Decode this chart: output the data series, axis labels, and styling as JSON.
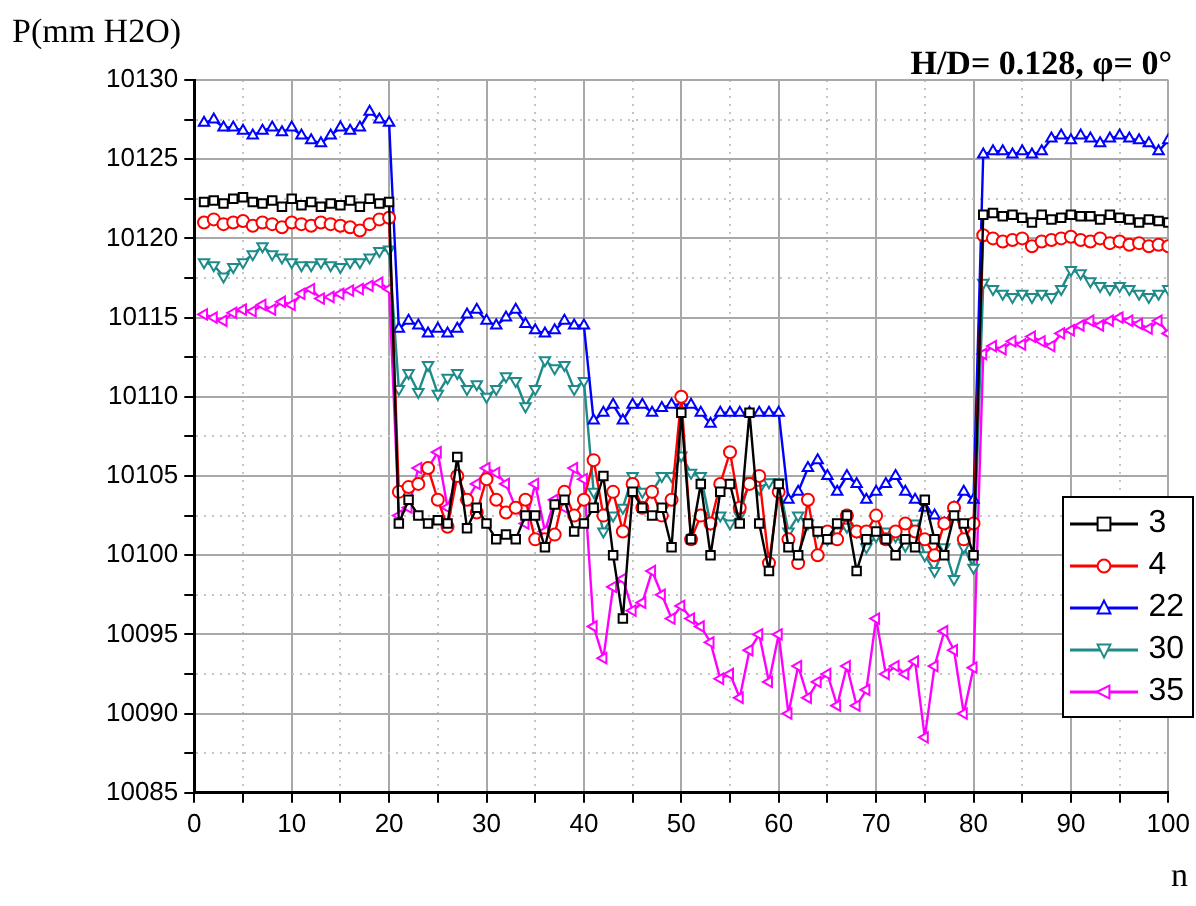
{
  "chart_data": {
    "type": "line",
    "title": "H/D= 0.128, φ= 0°",
    "xlabel": "n",
    "ylabel": "P(mm H2O)",
    "x": [
      1,
      2,
      3,
      4,
      5,
      6,
      7,
      8,
      9,
      10,
      11,
      12,
      13,
      14,
      15,
      16,
      17,
      18,
      19,
      20,
      21,
      22,
      23,
      24,
      25,
      26,
      27,
      28,
      29,
      30,
      31,
      32,
      33,
      34,
      35,
      36,
      37,
      38,
      39,
      40,
      41,
      42,
      43,
      44,
      45,
      46,
      47,
      48,
      49,
      50,
      51,
      52,
      53,
      54,
      55,
      56,
      57,
      58,
      59,
      60,
      61,
      62,
      63,
      64,
      65,
      66,
      67,
      68,
      69,
      70,
      71,
      72,
      73,
      74,
      75,
      76,
      77,
      78,
      79,
      80,
      81,
      82,
      83,
      84,
      85,
      86,
      87,
      88,
      89,
      90,
      91,
      92,
      93,
      94,
      95,
      96,
      97,
      98,
      99,
      100
    ],
    "xlim": [
      0,
      100
    ],
    "xticks": [
      0,
      {
        "value": 5,
        "label": null
      },
      10,
      {
        "value": 15,
        "label": null
      },
      20,
      {
        "value": 25,
        "label": null
      },
      30,
      {
        "value": 35,
        "label": null
      },
      40,
      {
        "value": 45,
        "label": null
      },
      50,
      {
        "value": 55,
        "label": null
      },
      60,
      {
        "value": 65,
        "label": null
      },
      70,
      {
        "value": 75,
        "label": null
      },
      80,
      {
        "value": 85,
        "label": null
      },
      90,
      {
        "value": 95,
        "label": null
      },
      100
    ],
    "ylim": [
      10085,
      10130
    ],
    "yticks": [
      10085,
      {
        "value": 10087.5,
        "label": null
      },
      10090,
      {
        "value": 10092.5,
        "label": null
      },
      10095,
      {
        "value": 10097.5,
        "label": null
      },
      10100,
      {
        "value": 10102.5,
        "label": null
      },
      10105,
      {
        "value": 10107.5,
        "label": null
      },
      10110,
      {
        "value": 10112.5,
        "label": null
      },
      10115,
      {
        "value": 10117.5,
        "label": null
      },
      10120,
      {
        "value": 10122.5,
        "label": null
      },
      10125,
      {
        "value": 10127.5,
        "label": null
      },
      10130
    ],
    "grid": true,
    "legend": "right",
    "line_style": "solid",
    "series": [
      {
        "name": "3",
        "color": "#000000",
        "marker": "square",
        "values": [
          10122.3,
          10122.4,
          10122.2,
          10122.5,
          10122.6,
          10122.3,
          10122.2,
          10122.4,
          10122.0,
          10122.5,
          10122.1,
          10122.3,
          10122.0,
          10122.2,
          10122.1,
          10122.4,
          10122.0,
          10122.5,
          10122.2,
          10122.3,
          10102.0,
          10103.5,
          10102.5,
          10102.0,
          10102.2,
          10102.0,
          10106.2,
          10101.7,
          10103.0,
          10102.0,
          10101.0,
          10101.3,
          10101.0,
          10102.5,
          10102.5,
          10100.5,
          10103.2,
          10103.5,
          10101.5,
          10102.0,
          10103,
          10105,
          10100,
          10096,
          10104,
          10103,
          10102.5,
          10103,
          10100.5,
          10109,
          10101,
          10104.5,
          10100,
          10104,
          10104.5,
          10102,
          10109,
          10102,
          10099,
          10104.5,
          10100.5,
          10100,
          10102,
          10101.5,
          10101,
          10102,
          10102.5,
          10099,
          10101,
          10101.5,
          10101,
          10100,
          10101,
          10100.5,
          10103.5,
          10101,
          10100,
          10102.5,
          10102,
          10100,
          10121.5,
          10121.6,
          10121.4,
          10121.5,
          10121.3,
          10121.0,
          10121.5,
          10121.2,
          10121.3,
          10121.5,
          10121.4,
          10121.4,
          10121.2,
          10121.5,
          10121.3,
          10121.2,
          10121.0,
          10121.2,
          10121.1,
          10121.0
        ]
      },
      {
        "name": "4",
        "color": "#ff0000",
        "marker": "circle",
        "values": [
          10121.0,
          10121.2,
          10120.9,
          10121.0,
          10121.1,
          10120.8,
          10121.0,
          10120.9,
          10120.7,
          10121.0,
          10120.9,
          10120.8,
          10121.0,
          10120.9,
          10120.8,
          10120.7,
          10120.5,
          10120.9,
          10121.2,
          10121.3,
          10104.0,
          10104.3,
          10104.5,
          10105.5,
          10103.5,
          10101.8,
          10105.0,
          10103.5,
          10102.7,
          10104.8,
          10103.5,
          10102.7,
          10103.0,
          10103.5,
          10101.0,
          10101.0,
          10101.3,
          10104.0,
          10102.5,
          10103.5,
          10106,
          10102.5,
          10104,
          10101.5,
          10104.5,
          10103,
          10104,
          10102.5,
          10103.5,
          10110,
          10101,
          10102.5,
          10102,
          10104.5,
          10106.5,
          10103,
          10104.5,
          10105,
          10099.5,
          10104,
          10101,
          10099.5,
          10103.5,
          10100,
          10101.5,
          10101,
          10102.5,
          10101.5,
          10101.5,
          10102.5,
          10101,
          10101.5,
          10102,
          10101.5,
          10101,
          10100,
          10102,
          10103,
          10101,
          10102,
          10120.2,
          10120.0,
          10119.8,
          10119.9,
          10120.0,
          10119.5,
          10119.8,
          10119.9,
          10120.0,
          10120.1,
          10119.9,
          10119.8,
          10120.0,
          10119.7,
          10119.8,
          10119.6,
          10119.7,
          10119.5,
          10119.6,
          10119.5
        ]
      },
      {
        "name": "22",
        "color": "#0000ff",
        "marker": "triangle",
        "values": [
          10127.3,
          10127.5,
          10127.0,
          10127.0,
          10126.8,
          10126.5,
          10126.8,
          10127.0,
          10126.7,
          10127.0,
          10126.5,
          10126.2,
          10126.0,
          10126.5,
          10127.0,
          10126.8,
          10127.0,
          10128.0,
          10127.5,
          10127.3,
          10114.3,
          10114.8,
          10114.5,
          10114.0,
          10114.3,
          10114.0,
          10114.3,
          10115.2,
          10115.5,
          10114.8,
          10114.5,
          10115.0,
          10115.5,
          10114.6,
          10114.2,
          10114.0,
          10114.2,
          10114.8,
          10114.5,
          10114.5,
          10108.5,
          10109,
          10109.5,
          10108.5,
          10109.5,
          10109.5,
          10109,
          10109.3,
          10109.5,
          10109.5,
          10109.5,
          10109,
          10108.3,
          10109,
          10109,
          10109,
          10109,
          10109,
          10109,
          10109,
          10103.5,
          10104,
          10105.5,
          10106,
          10105,
          10104,
          10105,
          10104.5,
          10103.5,
          10104,
          10104.5,
          10105,
          10104,
          10103.5,
          10103,
          10102.5,
          10102,
          10103,
          10104,
          10103.5,
          10125.3,
          10125.5,
          10125.5,
          10125.3,
          10125.5,
          10125.3,
          10125.5,
          10126.3,
          10126.5,
          10126.2,
          10126.5,
          10126.3,
          10126.0,
          10126.3,
          10126.5,
          10126.3,
          10126.2,
          10126.0,
          10125.5,
          10126.2
        ]
      },
      {
        "name": "30",
        "color": "#1f8a8a",
        "marker": "triangle-down",
        "values": [
          10118.5,
          10118.3,
          10117.6,
          10118.2,
          10118.5,
          10119.0,
          10119.5,
          10119.0,
          10118.8,
          10118.5,
          10118.3,
          10118.3,
          10118.5,
          10118.3,
          10118.2,
          10118.5,
          10118.5,
          10118.8,
          10119.2,
          10119.3,
          10110.5,
          10111.5,
          10110.3,
          10112,
          10110.2,
          10111.2,
          10111.5,
          10110.5,
          10110.8,
          10110,
          10110.5,
          10111.3,
          10111.0,
          10109.4,
          10110.5,
          10112.3,
          10111.8,
          10112,
          10110.5,
          10111,
          10104,
          10101.5,
          10102.5,
          10103,
          10105,
          10104,
          10104,
          10105,
          10105,
          10106.3,
          10105.2,
          10105,
          10102,
          10102.5,
          10102,
          10102.5,
          10104.7,
          10104.2,
          10104.6,
          10104.6,
          10101.5,
          10102.5,
          10102,
          10101.5,
          10101,
          10101.5,
          10101.8,
          10101.5,
          10100.5,
          10101.2,
          10101.5,
          10101.2,
          10100.6,
          10102,
          10100,
          10099,
          10100.5,
          10098.5,
          10100.5,
          10099.2,
          10117.2,
          10116.8,
          10116.5,
          10116.3,
          10116.5,
          10116.3,
          10116.5,
          10116.3,
          10116.8,
          10118.0,
          10117.8,
          10117.3,
          10117.0,
          10116.8,
          10117.0,
          10116.8,
          10116.5,
          10116.3,
          10116.5,
          10116.8
        ]
      },
      {
        "name": "35",
        "color": "#ff00ff",
        "marker": "triangle-left",
        "values": [
          10115.2,
          10115.0,
          10114.8,
          10115.3,
          10115.5,
          10115.4,
          10115.8,
          10115.5,
          10116.0,
          10115.8,
          10116.5,
          10116.8,
          10116.2,
          10116.3,
          10116.5,
          10116.7,
          10116.8,
          10117.0,
          10117.2,
          10116.8,
          10102.5,
          10103,
          10105.5,
          10105.5,
          10106.5,
          10103,
          10105,
          10103.5,
          10104.5,
          10105.5,
          10105.2,
          10104.5,
          10103,
          10102,
          10104.5,
          10101.5,
          10103.5,
          10103,
          10105.5,
          10104.8,
          10095.5,
          10093.5,
          10098,
          10098.5,
          10096.5,
          10097,
          10099,
          10097.5,
          10096,
          10096.8,
          10096,
          10095.5,
          10094.5,
          10092.2,
          10092.5,
          10091,
          10094,
          10095,
          10092,
          10095,
          10090,
          10093,
          10091,
          10092,
          10092.5,
          10090.5,
          10093,
          10090.5,
          10091.5,
          10096,
          10092.5,
          10093,
          10092.5,
          10093.3,
          10088.5,
          10093,
          10095.2,
          10094,
          10090,
          10092.9,
          10112.7,
          10113.2,
          10113,
          10113.5,
          10113.3,
          10113.8,
          10113.5,
          10113.2,
          10114,
          10114.2,
          10114.5,
          10114.8,
          10114.5,
          10114.8,
          10115,
          10114.8,
          10114.6,
          10114.3,
          10114.8,
          10114
        ]
      }
    ]
  }
}
